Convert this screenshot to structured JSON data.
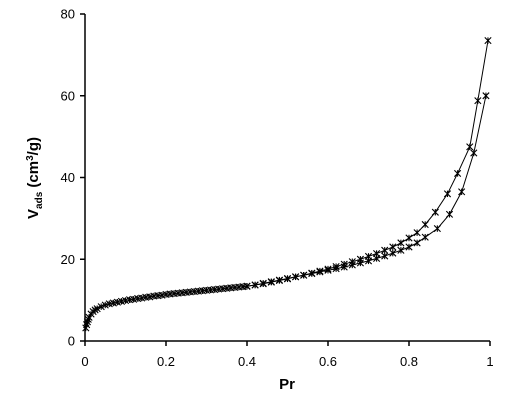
{
  "chart_data": {
    "type": "line",
    "xlabel": "Pr",
    "ylabel": {
      "main": "V",
      "sub": "ads",
      "unit_pre": " (cm",
      "unit_sup": "3",
      "unit_post": "/g)"
    },
    "xlim": [
      0,
      1
    ],
    "ylim": [
      0,
      80
    ],
    "x_ticks": [
      0,
      0.2,
      0.4,
      0.6,
      0.8,
      1
    ],
    "x_tick_labels": [
      "0",
      "0.2",
      "0.4",
      "0.6",
      "0.8",
      "1"
    ],
    "y_ticks": [
      0,
      20,
      40,
      60,
      80
    ],
    "y_tick_labels": [
      "0",
      "20",
      "40",
      "60",
      "80"
    ],
    "grid": false,
    "legend": "none",
    "marker": "star",
    "color": "#000000",
    "series": [
      {
        "x": [
          0.002,
          0.004,
          0.006,
          0.008,
          0.01,
          0.015,
          0.02,
          0.025,
          0.03,
          0.04,
          0.05,
          0.06,
          0.07,
          0.08,
          0.09,
          0.1,
          0.11,
          0.12,
          0.13,
          0.14,
          0.15,
          0.16,
          0.17,
          0.18,
          0.19,
          0.2,
          0.21,
          0.22,
          0.23,
          0.24,
          0.25,
          0.26,
          0.27,
          0.28,
          0.29,
          0.3,
          0.31,
          0.32,
          0.33,
          0.34,
          0.35,
          0.36,
          0.37,
          0.38,
          0.39,
          0.4,
          0.42,
          0.44,
          0.46,
          0.48,
          0.5,
          0.52,
          0.54,
          0.56,
          0.58,
          0.6,
          0.62,
          0.64,
          0.66,
          0.68,
          0.7,
          0.72,
          0.74,
          0.76,
          0.78,
          0.8,
          0.82,
          0.84,
          0.87,
          0.9,
          0.93,
          0.96,
          0.99
        ],
        "y": [
          3.2,
          4.0,
          4.7,
          5.3,
          5.8,
          6.6,
          7.2,
          7.6,
          7.9,
          8.4,
          8.8,
          9.1,
          9.3,
          9.5,
          9.7,
          9.9,
          10.1,
          10.2,
          10.4,
          10.5,
          10.7,
          10.8,
          11.0,
          11.1,
          11.2,
          11.4,
          11.5,
          11.6,
          11.7,
          11.8,
          11.9,
          12.0,
          12.1,
          12.2,
          12.3,
          12.4,
          12.5,
          12.6,
          12.7,
          12.8,
          12.9,
          13.0,
          13.1,
          13.2,
          13.3,
          13.4,
          13.7,
          14.1,
          14.5,
          14.9,
          15.3,
          15.7,
          16.1,
          16.5,
          16.9,
          17.3,
          17.7,
          18.1,
          18.6,
          19.1,
          19.6,
          20.2,
          20.8,
          21.5,
          22.2,
          23.0,
          24.0,
          25.4,
          27.5,
          31.0,
          36.5,
          46.0,
          60.0
        ]
      },
      {
        "x": [
          0.995,
          0.97,
          0.95,
          0.92,
          0.895,
          0.865,
          0.84,
          0.82,
          0.8,
          0.78,
          0.76,
          0.74,
          0.72,
          0.7,
          0.68,
          0.66,
          0.64,
          0.62,
          0.6,
          0.58,
          0.56,
          0.54,
          0.52,
          0.5,
          0.48,
          0.46,
          0.44,
          0.42,
          0.4
        ],
        "y": [
          73.5,
          58.8,
          47.5,
          41.0,
          36.0,
          31.5,
          28.5,
          26.5,
          25.2,
          24.0,
          23.0,
          22.2,
          21.4,
          20.7,
          20.0,
          19.4,
          18.8,
          18.2,
          17.6,
          17.1,
          16.6,
          16.1,
          15.7,
          15.2,
          14.8,
          14.4,
          14.0,
          13.7,
          13.4
        ]
      }
    ]
  }
}
